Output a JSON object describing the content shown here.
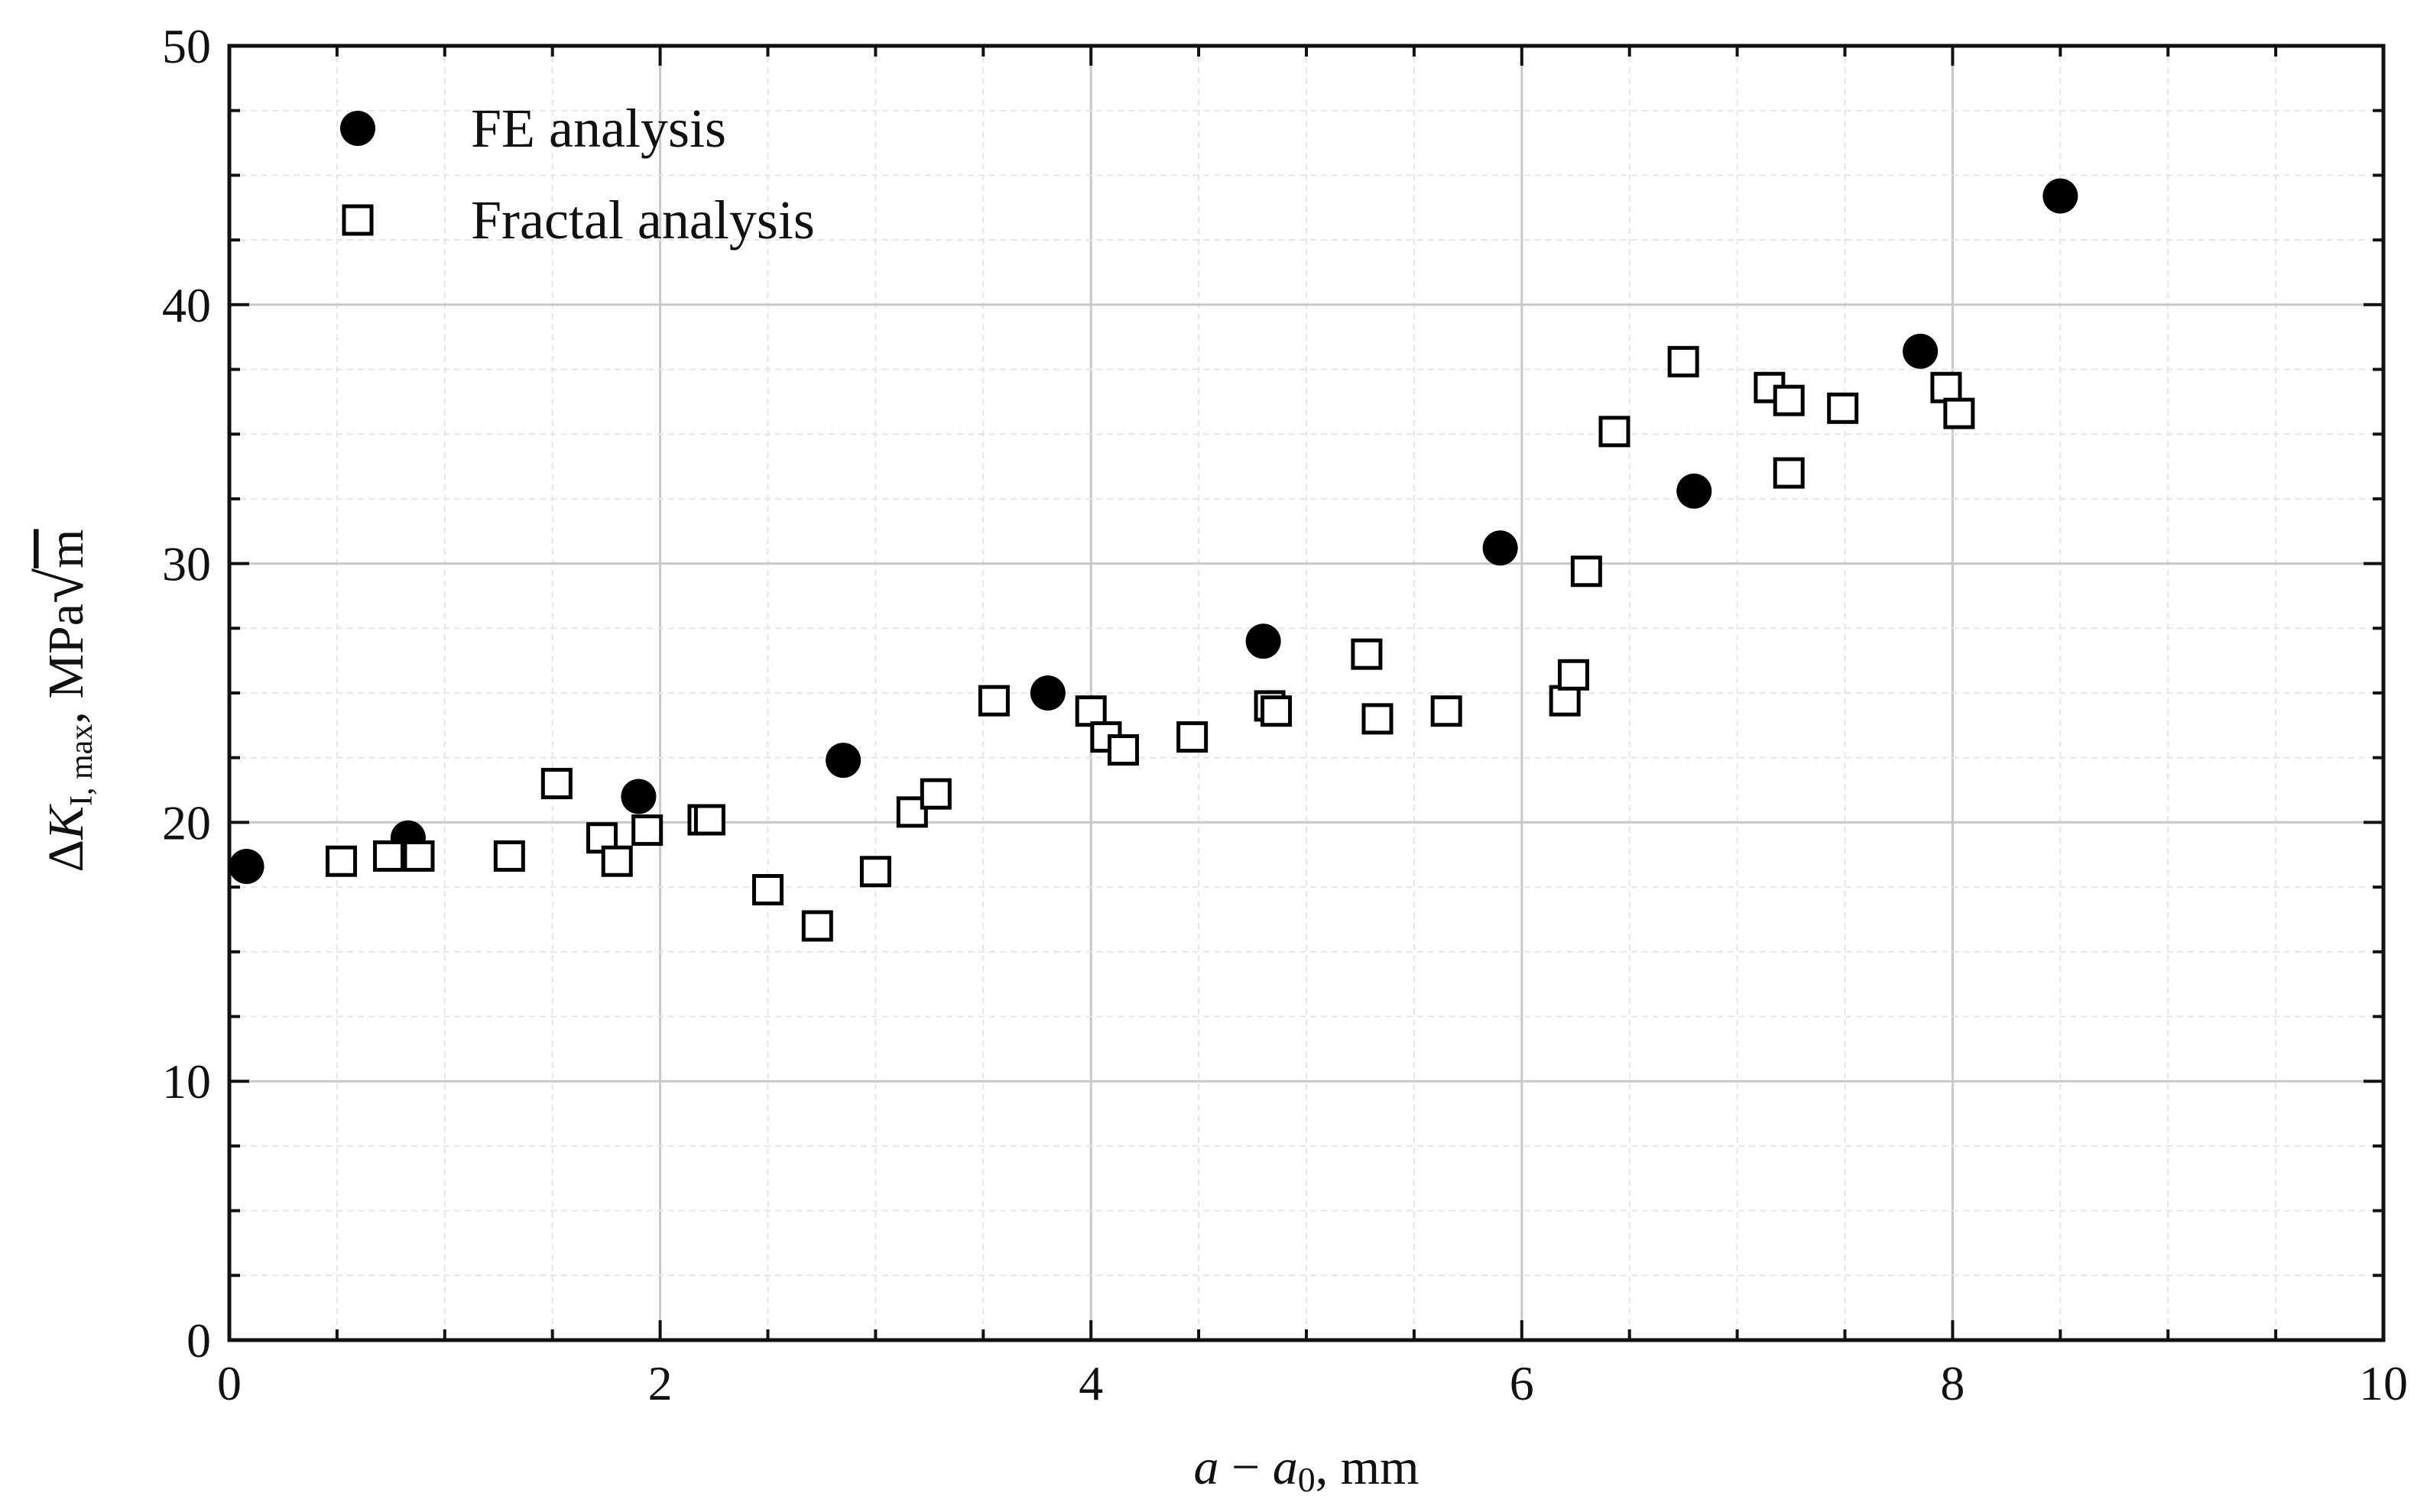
{
  "chart_data": {
    "type": "scatter",
    "title": "",
    "xlabel": {
      "prefix": "a",
      "sep": " − ",
      "var": "a",
      "sub": "0",
      "unit": ", mm"
    },
    "ylabel": {
      "delta": "Δ",
      "var": "K",
      "sub": "I, max",
      "unit": ", MPa",
      "sqrt": "√",
      "root": "m"
    },
    "xlim": [
      0,
      10
    ],
    "ylim": [
      0,
      50
    ],
    "x_ticks": [
      "0",
      "2",
      "4",
      "6",
      "8",
      "10"
    ],
    "y_ticks": [
      "0",
      "10",
      "20",
      "30",
      "40",
      "50"
    ],
    "grid": true,
    "legend_position": "top-left",
    "series": [
      {
        "name": "FE analysis",
        "marker": "filled-circle",
        "color": "#000000",
        "points": [
          [
            0.08,
            18.3
          ],
          [
            0.83,
            19.4
          ],
          [
            1.9,
            21.0
          ],
          [
            2.85,
            22.4
          ],
          [
            3.8,
            25.0
          ],
          [
            4.8,
            27.0
          ],
          [
            5.9,
            30.6
          ],
          [
            6.8,
            32.8
          ],
          [
            7.85,
            38.2
          ],
          [
            8.5,
            44.2
          ]
        ]
      },
      {
        "name": "Fractal analysis",
        "marker": "open-square",
        "color": "#000000",
        "points": [
          [
            0.52,
            18.5
          ],
          [
            0.74,
            18.7
          ],
          [
            0.88,
            18.7
          ],
          [
            1.3,
            18.7
          ],
          [
            1.52,
            21.5
          ],
          [
            1.73,
            19.4
          ],
          [
            1.8,
            18.5
          ],
          [
            1.94,
            19.7
          ],
          [
            2.2,
            20.1
          ],
          [
            2.23,
            20.1
          ],
          [
            2.5,
            17.4
          ],
          [
            2.73,
            16.0
          ],
          [
            3.0,
            18.1
          ],
          [
            3.17,
            20.4
          ],
          [
            3.28,
            21.1
          ],
          [
            3.55,
            24.7
          ],
          [
            4.0,
            24.3
          ],
          [
            4.07,
            23.3
          ],
          [
            4.15,
            22.8
          ],
          [
            4.47,
            23.3
          ],
          [
            4.83,
            24.5
          ],
          [
            4.86,
            24.3
          ],
          [
            5.28,
            26.5
          ],
          [
            5.33,
            24.0
          ],
          [
            5.65,
            24.3
          ],
          [
            6.2,
            24.7
          ],
          [
            6.24,
            25.7
          ],
          [
            6.3,
            29.7
          ],
          [
            6.43,
            35.1
          ],
          [
            6.75,
            37.8
          ],
          [
            7.15,
            36.8
          ],
          [
            7.24,
            36.3
          ],
          [
            7.24,
            33.5
          ],
          [
            7.49,
            36.0
          ],
          [
            7.97,
            36.8
          ],
          [
            8.03,
            35.8
          ]
        ]
      }
    ]
  }
}
